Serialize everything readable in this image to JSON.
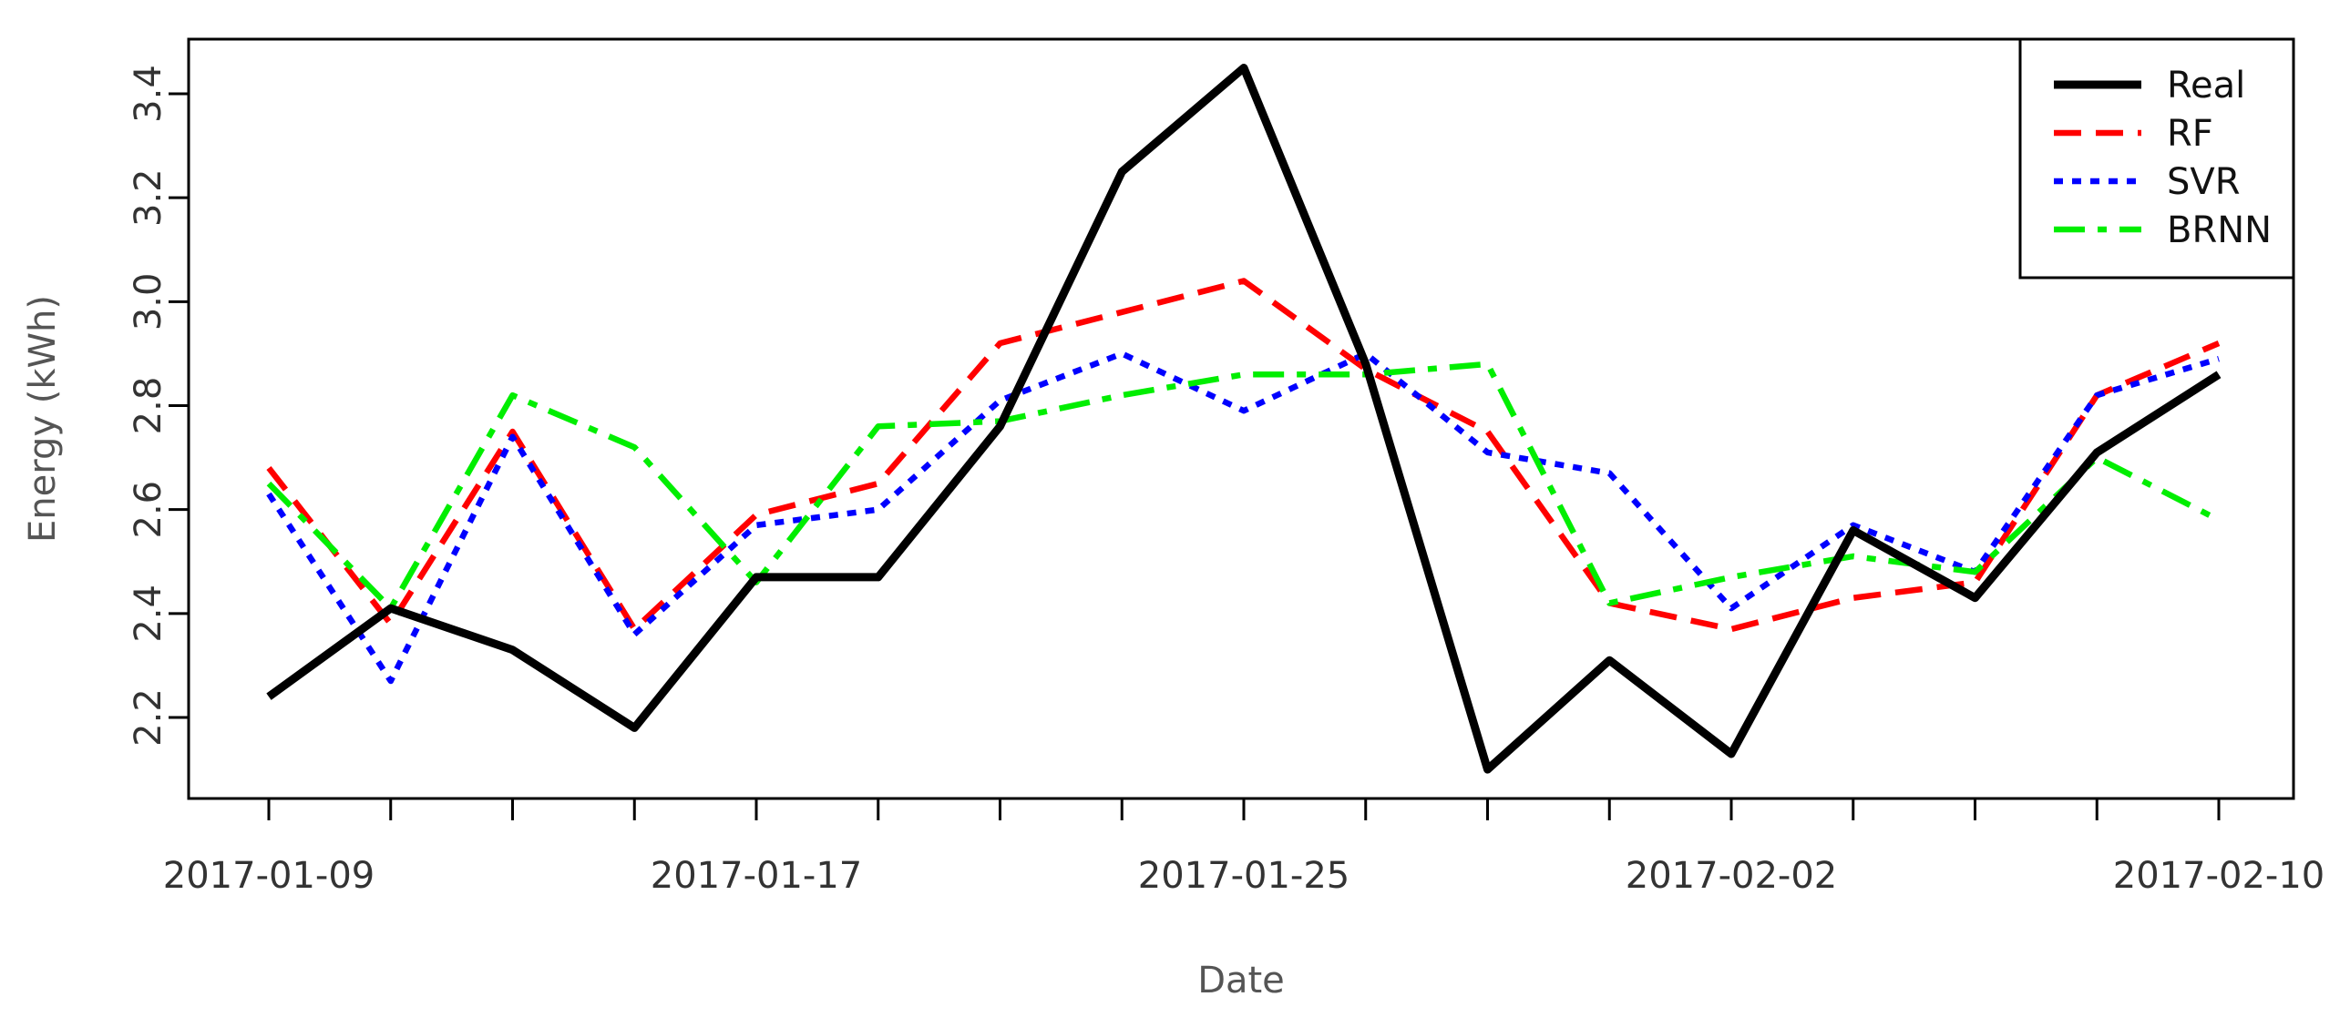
{
  "chart_data": {
    "type": "line",
    "xlabel": "Date",
    "ylabel": "Energy (kWh)",
    "x": [
      "2017-01-09",
      "2017-01-11",
      "2017-01-13",
      "2017-01-15",
      "2017-01-17",
      "2017-01-19",
      "2017-01-21",
      "2017-01-23",
      "2017-01-25",
      "2017-01-27",
      "2017-01-29",
      "2017-01-31",
      "2017-02-02",
      "2017-02-04",
      "2017-02-06",
      "2017-02-08",
      "2017-02-10"
    ],
    "x_tick_labels": [
      "2017-01-09",
      "2017-01-17",
      "2017-01-25",
      "2017-02-02",
      "2017-02-10"
    ],
    "yticks": [
      "2.2",
      "2.4",
      "2.6",
      "2.8",
      "3.0",
      "3.2",
      "3.4"
    ],
    "ylim": [
      2.05,
      3.5
    ],
    "grid": false,
    "legend_position": "top-right",
    "series": [
      {
        "name": "Real",
        "color": "#000000",
        "style": "solid",
        "values": [
          2.24,
          2.41,
          2.33,
          2.18,
          2.47,
          2.47,
          2.76,
          3.25,
          3.45,
          2.88,
          2.1,
          2.31,
          2.13,
          2.56,
          2.43,
          2.71,
          2.86
        ]
      },
      {
        "name": "RF",
        "color": "#ff0000",
        "style": "dashed",
        "values": [
          2.68,
          2.38,
          2.75,
          2.37,
          2.59,
          2.65,
          2.92,
          2.98,
          3.04,
          2.87,
          2.75,
          2.42,
          2.37,
          2.43,
          2.46,
          2.82,
          2.92
        ]
      },
      {
        "name": "SVR",
        "color": "#0000ff",
        "style": "dotted",
        "values": [
          2.63,
          2.27,
          2.74,
          2.36,
          2.57,
          2.6,
          2.81,
          2.9,
          2.79,
          2.9,
          2.71,
          2.67,
          2.41,
          2.57,
          2.48,
          2.82,
          2.89
        ]
      },
      {
        "name": "BRNN",
        "color": "#00ee00",
        "style": "dashdot",
        "values": [
          2.65,
          2.41,
          2.82,
          2.72,
          2.46,
          2.76,
          2.77,
          2.82,
          2.86,
          2.86,
          2.88,
          2.42,
          2.47,
          2.51,
          2.48,
          2.7,
          2.58
        ]
      }
    ]
  }
}
